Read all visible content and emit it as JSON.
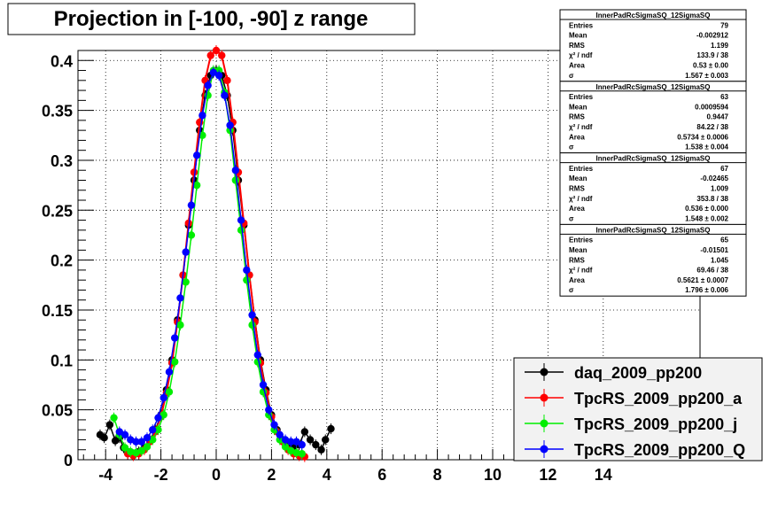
{
  "title": "Projection in [-100, -90] z range",
  "chart_data": {
    "type": "scatter",
    "title": "Projection in [-100, -90] z range",
    "xlabel": "",
    "ylabel": "",
    "xlim": [
      -5,
      17.5
    ],
    "ylim": [
      0,
      0.41
    ],
    "grid": true,
    "x_ticks": [
      -4,
      -2,
      0,
      2,
      4,
      6,
      8,
      10,
      12,
      14
    ],
    "x_tick_labels": [
      "-4",
      "-2",
      "0",
      "2",
      "4",
      "6",
      "8",
      "10",
      "12",
      "14"
    ],
    "y_ticks": [
      0,
      0.05,
      0.1,
      0.15,
      0.2,
      0.25,
      0.3,
      0.35,
      0.4
    ],
    "y_tick_labels": [
      "0",
      "0.05",
      "0.1",
      "0.15",
      "0.2",
      "0.25",
      "0.3",
      "0.35",
      "0.4"
    ],
    "legend_position": "bottom-right",
    "legend": [
      {
        "label": "daq_2009_pp200",
        "color": "#000000"
      },
      {
        "label": "TpcRS_2009_pp200_a",
        "color": "#ff0000"
      },
      {
        "label": "TpcRS_2009_pp200_j",
        "color": "#00ee00"
      },
      {
        "label": "TpcRS_2009_pp200_Q",
        "color": "#0000ff"
      }
    ],
    "series": [
      {
        "color": "#000000",
        "points": [
          [
            -4.2,
            0.025
          ],
          [
            -4.05,
            0.022
          ],
          [
            -3.85,
            0.035
          ],
          [
            -3.65,
            0.019
          ],
          [
            -3.5,
            0.022
          ],
          [
            -3.35,
            0.012
          ],
          [
            -3.2,
            0.008
          ],
          [
            -3.0,
            0.005
          ],
          [
            -2.8,
            0.008
          ],
          [
            -2.6,
            0.012
          ],
          [
            -2.4,
            0.02
          ],
          [
            -2.2,
            0.03
          ],
          [
            -2.0,
            0.045
          ],
          [
            -1.8,
            0.07
          ],
          [
            -1.6,
            0.1
          ],
          [
            -1.4,
            0.14
          ],
          [
            -1.2,
            0.185
          ],
          [
            -1.0,
            0.235
          ],
          [
            -0.8,
            0.28
          ],
          [
            -0.6,
            0.33
          ],
          [
            -0.4,
            0.365
          ],
          [
            -0.2,
            0.385
          ],
          [
            0.0,
            0.39
          ],
          [
            0.2,
            0.385
          ],
          [
            0.4,
            0.365
          ],
          [
            0.6,
            0.33
          ],
          [
            0.8,
            0.28
          ],
          [
            1.0,
            0.235
          ],
          [
            1.2,
            0.185
          ],
          [
            1.4,
            0.14
          ],
          [
            1.6,
            0.1
          ],
          [
            1.8,
            0.07
          ],
          [
            2.0,
            0.045
          ],
          [
            2.2,
            0.03
          ],
          [
            2.4,
            0.02
          ],
          [
            2.6,
            0.015
          ],
          [
            2.8,
            0.012
          ],
          [
            3.0,
            0.015
          ],
          [
            3.2,
            0.028
          ],
          [
            3.4,
            0.02
          ],
          [
            3.6,
            0.015
          ],
          [
            3.8,
            0.01
          ],
          [
            3.95,
            0.02
          ],
          [
            4.15,
            0.031
          ]
        ]
      },
      {
        "color": "#ff0000",
        "points": [
          [
            -3.2,
            0.006
          ],
          [
            -3.0,
            0.004
          ],
          [
            -2.8,
            0.006
          ],
          [
            -2.6,
            0.01
          ],
          [
            -2.4,
            0.018
          ],
          [
            -2.2,
            0.028
          ],
          [
            -2.0,
            0.043
          ],
          [
            -1.8,
            0.067
          ],
          [
            -1.6,
            0.097
          ],
          [
            -1.4,
            0.138
          ],
          [
            -1.2,
            0.185
          ],
          [
            -1.0,
            0.237
          ],
          [
            -0.8,
            0.288
          ],
          [
            -0.6,
            0.338
          ],
          [
            -0.4,
            0.38
          ],
          [
            -0.2,
            0.405
          ],
          [
            0.0,
            0.41
          ],
          [
            0.2,
            0.405
          ],
          [
            0.4,
            0.38
          ],
          [
            0.6,
            0.338
          ],
          [
            0.8,
            0.288
          ],
          [
            1.0,
            0.237
          ],
          [
            1.2,
            0.185
          ],
          [
            1.4,
            0.138
          ],
          [
            1.6,
            0.097
          ],
          [
            1.8,
            0.067
          ],
          [
            2.0,
            0.043
          ],
          [
            2.2,
            0.028
          ],
          [
            2.4,
            0.018
          ],
          [
            2.6,
            0.01
          ],
          [
            2.8,
            0.006
          ],
          [
            3.0,
            0.004
          ],
          [
            3.2,
            0.003
          ]
        ]
      },
      {
        "color": "#00ee00",
        "points": [
          [
            -3.7,
            0.042
          ],
          [
            -3.5,
            0.025
          ],
          [
            -3.3,
            0.012
          ],
          [
            -3.1,
            0.008
          ],
          [
            -2.9,
            0.007
          ],
          [
            -2.7,
            0.009
          ],
          [
            -2.5,
            0.013
          ],
          [
            -2.3,
            0.02
          ],
          [
            -2.1,
            0.03
          ],
          [
            -1.9,
            0.045
          ],
          [
            -1.7,
            0.068
          ],
          [
            -1.5,
            0.098
          ],
          [
            -1.3,
            0.135
          ],
          [
            -1.1,
            0.178
          ],
          [
            -0.9,
            0.225
          ],
          [
            -0.7,
            0.275
          ],
          [
            -0.5,
            0.325
          ],
          [
            -0.3,
            0.365
          ],
          [
            -0.1,
            0.39
          ],
          [
            0.1,
            0.39
          ],
          [
            0.3,
            0.368
          ],
          [
            0.5,
            0.33
          ],
          [
            0.7,
            0.28
          ],
          [
            0.9,
            0.23
          ],
          [
            1.1,
            0.18
          ],
          [
            1.3,
            0.135
          ],
          [
            1.5,
            0.098
          ],
          [
            1.7,
            0.068
          ],
          [
            1.9,
            0.045
          ],
          [
            2.1,
            0.03
          ],
          [
            2.3,
            0.02
          ],
          [
            2.5,
            0.013
          ],
          [
            2.7,
            0.009
          ],
          [
            2.9,
            0.007
          ],
          [
            3.1,
            0.006
          ]
        ]
      },
      {
        "color": "#0000ff",
        "points": [
          [
            -3.5,
            0.028
          ],
          [
            -3.3,
            0.025
          ],
          [
            -3.1,
            0.02
          ],
          [
            -2.9,
            0.018
          ],
          [
            -2.7,
            0.018
          ],
          [
            -2.5,
            0.022
          ],
          [
            -2.3,
            0.03
          ],
          [
            -2.1,
            0.042
          ],
          [
            -1.9,
            0.062
          ],
          [
            -1.7,
            0.088
          ],
          [
            -1.5,
            0.122
          ],
          [
            -1.3,
            0.162
          ],
          [
            -1.1,
            0.208
          ],
          [
            -0.9,
            0.255
          ],
          [
            -0.7,
            0.305
          ],
          [
            -0.5,
            0.345
          ],
          [
            -0.3,
            0.375
          ],
          [
            -0.1,
            0.388
          ],
          [
            0.1,
            0.385
          ],
          [
            0.3,
            0.365
          ],
          [
            0.5,
            0.335
          ],
          [
            0.7,
            0.29
          ],
          [
            0.9,
            0.24
          ],
          [
            1.1,
            0.19
          ],
          [
            1.3,
            0.145
          ],
          [
            1.5,
            0.105
          ],
          [
            1.7,
            0.075
          ],
          [
            1.9,
            0.05
          ],
          [
            2.1,
            0.035
          ],
          [
            2.3,
            0.025
          ],
          [
            2.5,
            0.02
          ],
          [
            2.7,
            0.018
          ],
          [
            2.9,
            0.018
          ],
          [
            3.1,
            0.015
          ]
        ]
      }
    ]
  },
  "stats_boxes": [
    {
      "name": "InnerPadRcSigmaSQ_12SigmaSQ",
      "rows": [
        {
          "label": "Entries",
          "value": "79"
        },
        {
          "label": "Mean",
          "value": "-0.002912"
        },
        {
          "label": "RMS",
          "value": "1.199"
        },
        {
          "label": "χ² / ndf",
          "value": "133.9 / 38"
        },
        {
          "label": "Area",
          "value": "0.53 ± 0.00"
        },
        {
          "label": "σ",
          "value": "1.567 ± 0.003"
        }
      ]
    },
    {
      "name": "InnerPadRcSigmaSQ_12SigmaSQ",
      "rows": [
        {
          "label": "Entries",
          "value": "63"
        },
        {
          "label": "Mean",
          "value": "0.0009594"
        },
        {
          "label": "RMS",
          "value": "0.9447"
        },
        {
          "label": "χ² / ndf",
          "value": "84.22 / 38"
        },
        {
          "label": "Area",
          "value": "0.5734 ± 0.0006"
        },
        {
          "label": "σ",
          "value": "1.538 ± 0.004"
        }
      ]
    },
    {
      "name": "InnerPadRcSigmaSQ_12SigmaSQ",
      "rows": [
        {
          "label": "Entries",
          "value": "67"
        },
        {
          "label": "Mean",
          "value": "-0.02465"
        },
        {
          "label": "RMS",
          "value": "1.009"
        },
        {
          "label": "χ² / ndf",
          "value": "353.8 / 38"
        },
        {
          "label": "Area",
          "value": "0.536 ± 0.000"
        },
        {
          "label": "σ",
          "value": "1.548 ± 0.002"
        }
      ]
    },
    {
      "name": "InnerPadRcSigmaSQ_12SigmaSQ",
      "rows": [
        {
          "label": "Entries",
          "value": "65"
        },
        {
          "label": "Mean",
          "value": "-0.01501"
        },
        {
          "label": "RMS",
          "value": "1.045"
        },
        {
          "label": "χ² / ndf",
          "value": "69.46 / 38"
        },
        {
          "label": "Area",
          "value": "0.5621 ± 0.0007"
        },
        {
          "label": "σ",
          "value": "1.796 ± 0.006"
        }
      ]
    }
  ]
}
